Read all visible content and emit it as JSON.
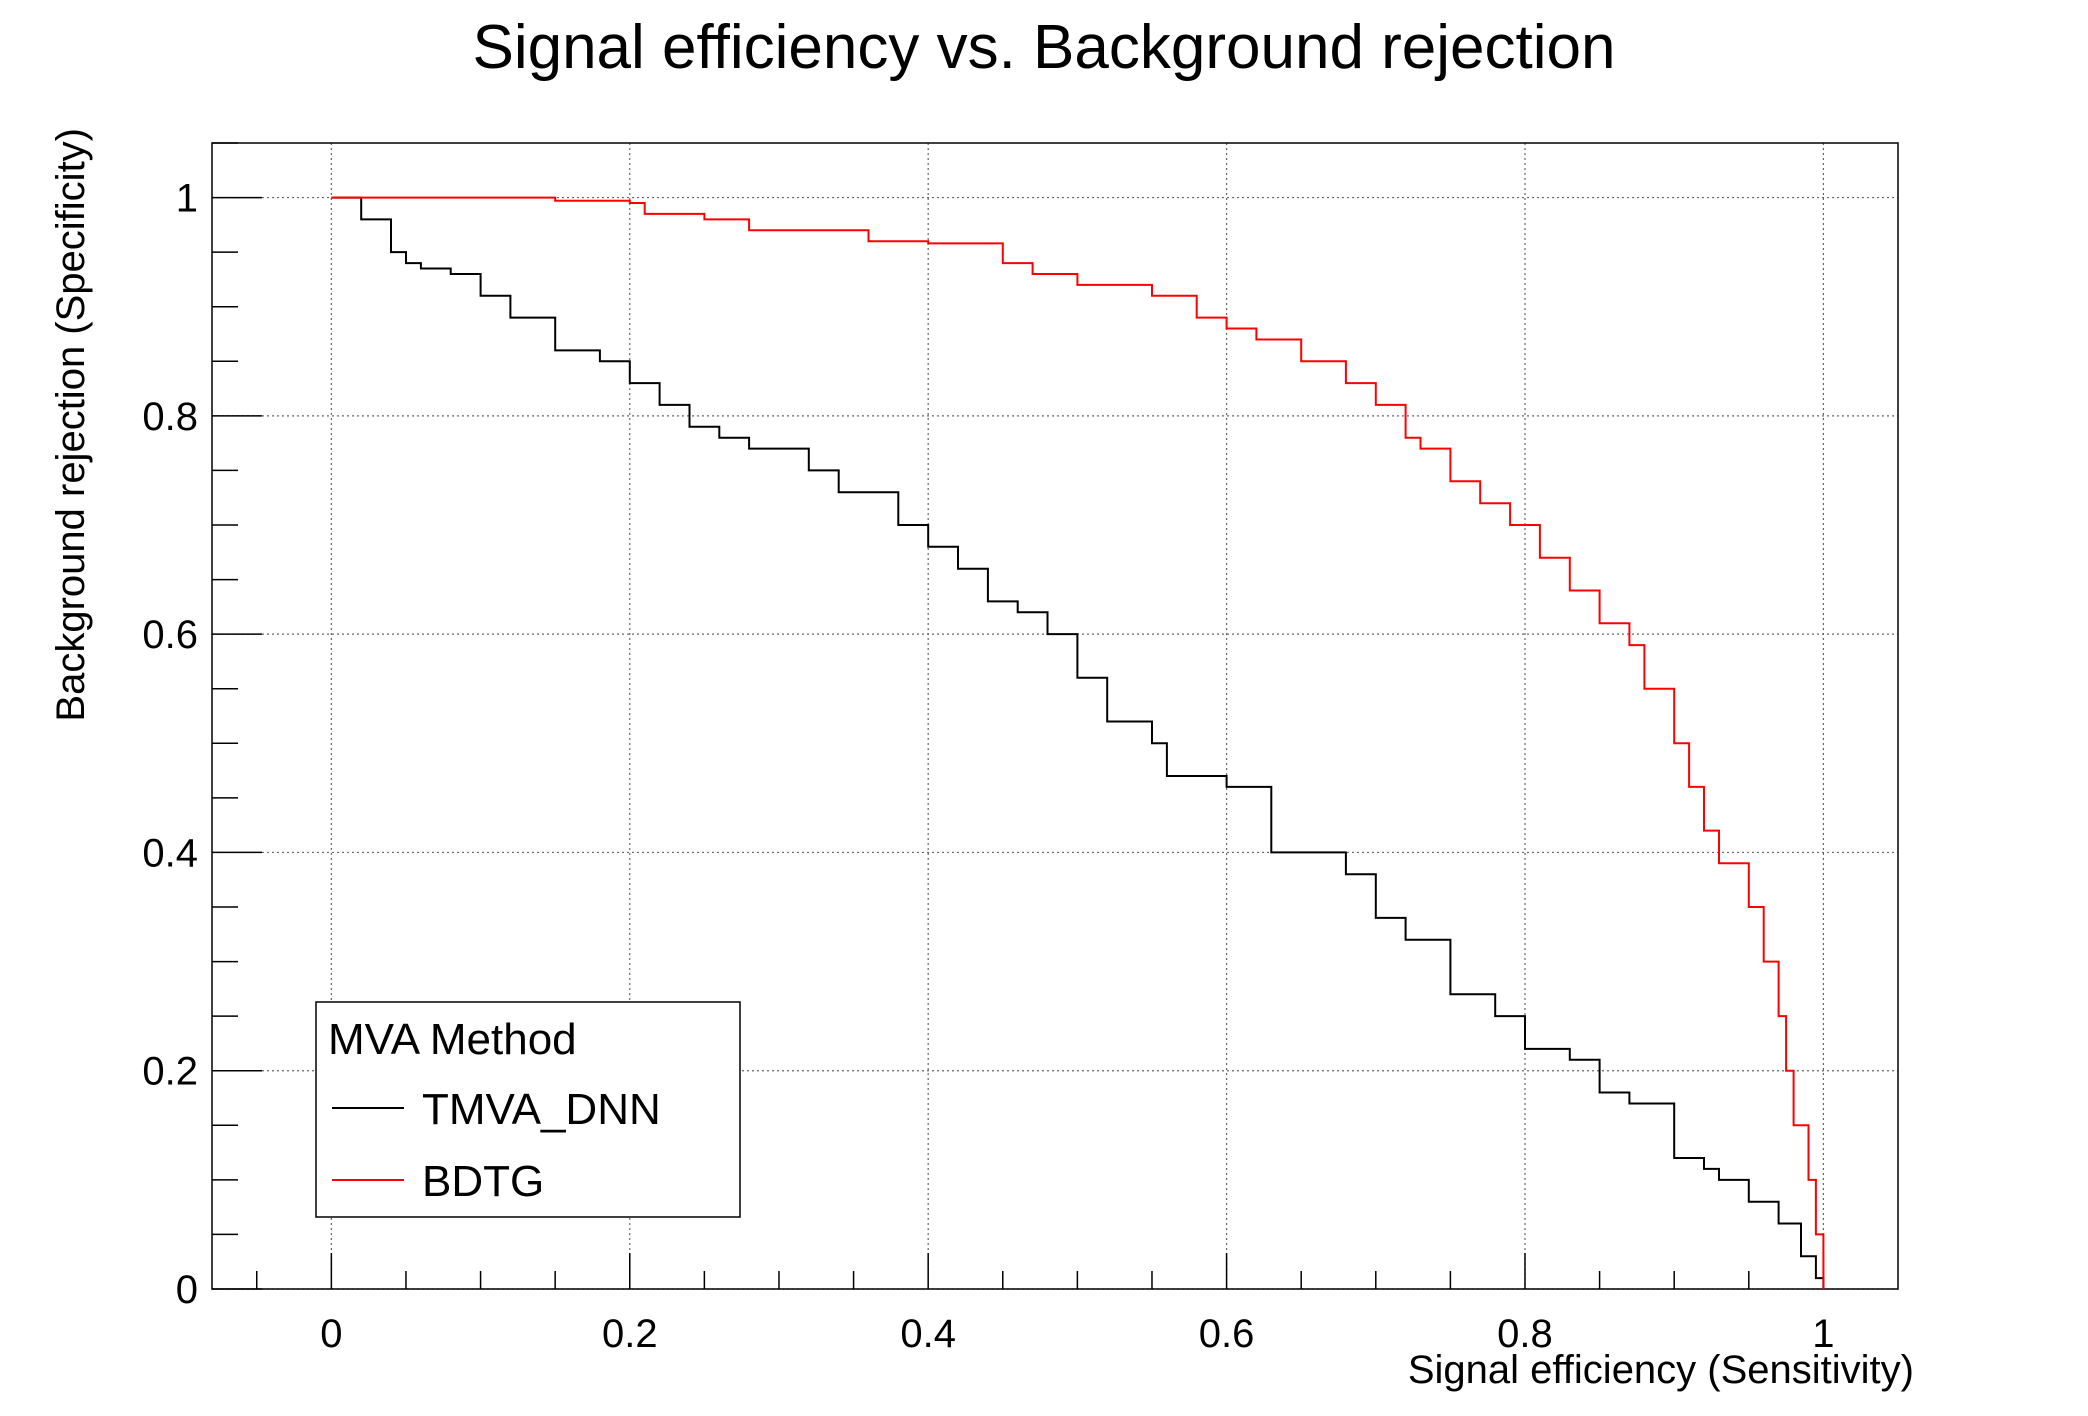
{
  "chart_data": {
    "type": "line",
    "title": "Signal efficiency vs. Background rejection",
    "xlabel": "Signal efficiency (Sensitivity)",
    "ylabel": "Background rejection (Specificity)",
    "xlim": [
      -0.08,
      1.05
    ],
    "ylim": [
      0,
      1.05
    ],
    "xticks": [
      "0",
      "0.2",
      "0.4",
      "0.6",
      "0.8",
      "1"
    ],
    "yticks": [
      "0",
      "0.2",
      "0.4",
      "0.6",
      "0.8",
      "1"
    ],
    "grid": true,
    "legend": {
      "title": "MVA Method",
      "position": "bottom-left"
    },
    "series": [
      {
        "name": "TMVA_DNN",
        "color": "#000000",
        "x": [
          0.0,
          0.02,
          0.04,
          0.05,
          0.06,
          0.08,
          0.1,
          0.12,
          0.15,
          0.18,
          0.2,
          0.22,
          0.24,
          0.26,
          0.28,
          0.32,
          0.34,
          0.38,
          0.4,
          0.42,
          0.44,
          0.46,
          0.48,
          0.5,
          0.52,
          0.55,
          0.56,
          0.6,
          0.63,
          0.68,
          0.7,
          0.72,
          0.75,
          0.78,
          0.8,
          0.83,
          0.85,
          0.87,
          0.9,
          0.92,
          0.93,
          0.95,
          0.97,
          0.985,
          0.995,
          1.0
        ],
        "y": [
          1.0,
          0.98,
          0.95,
          0.94,
          0.935,
          0.93,
          0.91,
          0.89,
          0.86,
          0.85,
          0.83,
          0.81,
          0.79,
          0.78,
          0.77,
          0.75,
          0.73,
          0.7,
          0.68,
          0.66,
          0.63,
          0.62,
          0.6,
          0.56,
          0.52,
          0.5,
          0.47,
          0.46,
          0.4,
          0.38,
          0.34,
          0.32,
          0.27,
          0.25,
          0.22,
          0.21,
          0.18,
          0.17,
          0.12,
          0.11,
          0.1,
          0.08,
          0.06,
          0.03,
          0.01,
          0.0
        ]
      },
      {
        "name": "BDTG",
        "color": "#ff0000",
        "x": [
          0.0,
          0.1,
          0.15,
          0.2,
          0.21,
          0.25,
          0.28,
          0.36,
          0.4,
          0.45,
          0.47,
          0.5,
          0.55,
          0.58,
          0.6,
          0.62,
          0.65,
          0.68,
          0.7,
          0.72,
          0.73,
          0.75,
          0.77,
          0.79,
          0.81,
          0.83,
          0.85,
          0.87,
          0.88,
          0.9,
          0.91,
          0.92,
          0.93,
          0.95,
          0.96,
          0.97,
          0.975,
          0.98,
          0.99,
          0.995,
          1.0
        ],
        "y": [
          1.0,
          1.0,
          0.997,
          0.995,
          0.985,
          0.98,
          0.97,
          0.96,
          0.958,
          0.94,
          0.93,
          0.92,
          0.91,
          0.89,
          0.88,
          0.87,
          0.85,
          0.83,
          0.81,
          0.78,
          0.77,
          0.74,
          0.72,
          0.7,
          0.67,
          0.64,
          0.61,
          0.59,
          0.55,
          0.5,
          0.46,
          0.42,
          0.39,
          0.35,
          0.3,
          0.25,
          0.2,
          0.15,
          0.1,
          0.05,
          0.0
        ]
      }
    ]
  }
}
